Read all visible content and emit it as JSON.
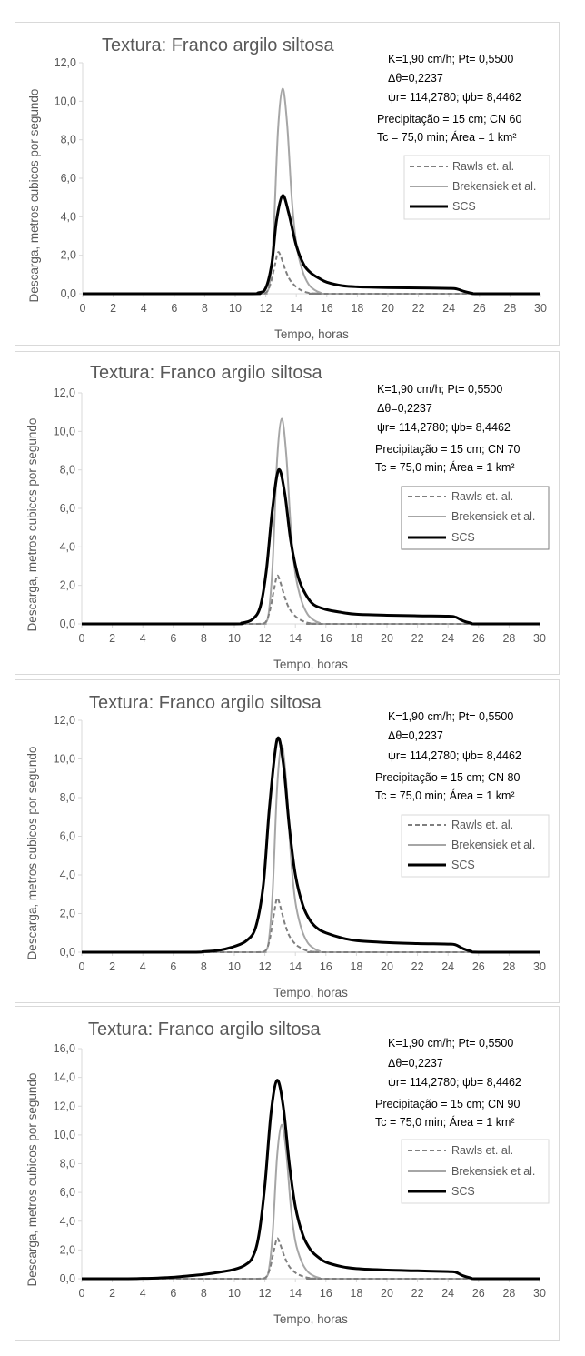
{
  "charts": [
    {
      "title": "Textura: Franco argilo siltosa",
      "params": [
        "K=1,90 cm/h; Pt= 0,5500",
        "Δθ=0,2237",
        "ψr= 114,2780;  ψb= 8,4462",
        "Precipitação = 15 cm; CN 60",
        "Tc = 75,0 min; Área = 1 km²"
      ],
      "xlabel": "Tempo, horas",
      "ylabel": "Descarga, metros cubicos por segundo",
      "x_ticks": [
        "0",
        "2",
        "4",
        "6",
        "8",
        "10",
        "12",
        "14",
        "16",
        "18",
        "20",
        "22",
        "24",
        "26",
        "28",
        "30"
      ],
      "y_ticks": [
        "0,0",
        "2,0",
        "4,0",
        "6,0",
        "8,0",
        "10,0",
        "12,0"
      ],
      "legend": [
        "Rawls et. al.",
        "Brekensiek et al.",
        "SCS"
      ]
    },
    {
      "title": "Textura: Franco argilo siltosa",
      "params": [
        "K=1,90 cm/h; Pt= 0,5500",
        "Δθ=0,2237",
        "ψr= 114,2780;  ψb= 8,4462",
        "Precipitação = 15 cm; CN 70",
        "Tc = 75,0 min; Área = 1 km²"
      ],
      "xlabel": "Tempo, horas",
      "ylabel": "Descarga, metros cubicos por segundo",
      "x_ticks": [
        "0",
        "2",
        "4",
        "6",
        "8",
        "10",
        "12",
        "14",
        "16",
        "18",
        "20",
        "22",
        "24",
        "26",
        "28",
        "30"
      ],
      "y_ticks": [
        "0,0",
        "2,0",
        "4,0",
        "6,0",
        "8,0",
        "10,0",
        "12,0"
      ],
      "legend": [
        "Rawls et. al.",
        "Brekensiek et al.",
        "SCS"
      ]
    },
    {
      "title": "Textura: Franco argilo siltosa",
      "params": [
        "K=1,90 cm/h; Pt= 0,5500",
        "Δθ=0,2237",
        "ψr= 114,2780;  ψb= 8,4462",
        "Precipitação = 15 cm; CN 80",
        "Tc = 75,0 min; Área = 1 km²"
      ],
      "xlabel": "Tempo, horas",
      "ylabel": "Descarga, metros cubicos por segundo",
      "x_ticks": [
        "0",
        "2",
        "4",
        "6",
        "8",
        "10",
        "12",
        "14",
        "16",
        "18",
        "20",
        "22",
        "24",
        "26",
        "28",
        "30"
      ],
      "y_ticks": [
        "0,0",
        "2,0",
        "4,0",
        "6,0",
        "8,0",
        "10,0",
        "12,0"
      ],
      "legend": [
        "Rawls et. al.",
        "Brekensiek et al.",
        "SCS"
      ]
    },
    {
      "title": "Textura: Franco argilo siltosa",
      "params": [
        "K=1,90 cm/h; Pt= 0,5500",
        "Δθ=0,2237",
        "ψr= 114,2780;  ψb= 8,4462",
        "Precipitação = 15 cm; CN 90",
        "Tc = 75,0 min; Área = 1 km²"
      ],
      "xlabel": "Tempo, horas",
      "ylabel": "Descarga, metros cubicos por segundo",
      "x_ticks": [
        "0",
        "2",
        "4",
        "6",
        "8",
        "10",
        "12",
        "14",
        "16",
        "18",
        "20",
        "22",
        "24",
        "26",
        "28",
        "30"
      ],
      "y_ticks": [
        "0,0",
        "2,0",
        "4,0",
        "6,0",
        "8,0",
        "10,0",
        "12,0",
        "14,0",
        "16,0"
      ],
      "legend": [
        "Rawls et. al.",
        "Brekensiek et al.",
        "SCS"
      ]
    }
  ],
  "chart_data": [
    {
      "type": "line",
      "title": "Textura: Franco argilo siltosa",
      "xlabel": "Tempo, horas",
      "ylabel": "Descarga, metros cubicos por segundo",
      "xlim": [
        0,
        30
      ],
      "ylim": [
        0,
        12
      ],
      "grid": false,
      "legend_position": "right",
      "series": [
        {
          "name": "Rawls et. al.",
          "color": "#7f7f7f",
          "dash": true,
          "x": [
            0,
            10,
            11.5,
            12,
            12.3,
            12.6,
            12.8,
            13.0,
            13.3,
            13.6,
            14.0,
            14.4,
            14.8,
            15.3,
            16,
            30
          ],
          "y": [
            0,
            0,
            0,
            0.05,
            0.5,
            1.5,
            2.15,
            1.9,
            1.2,
            0.7,
            0.35,
            0.15,
            0.05,
            0,
            0,
            0
          ]
        },
        {
          "name": "Brekensiek et al.",
          "color": "#a6a6a6",
          "dash": false,
          "x": [
            0,
            11,
            11.8,
            12.2,
            12.5,
            12.8,
            13.1,
            13.4,
            13.7,
            14.0,
            14.4,
            14.8,
            15.2,
            15.6,
            16,
            30
          ],
          "y": [
            0,
            0,
            0,
            0.3,
            3.0,
            8.5,
            10.65,
            8.8,
            5.0,
            2.6,
            1.2,
            0.5,
            0.2,
            0.05,
            0,
            0
          ]
        },
        {
          "name": "SCS",
          "color": "#000000",
          "dash": false,
          "x": [
            0,
            10.5,
            11.5,
            12.0,
            12.4,
            12.7,
            13.1,
            13.5,
            14.0,
            14.5,
            15.0,
            15.5,
            16,
            17,
            18,
            20,
            22,
            24,
            24.5,
            25.0,
            25.5,
            26,
            30
          ],
          "y": [
            0,
            0,
            0.05,
            0.3,
            1.6,
            3.8,
            5.1,
            4.2,
            2.5,
            1.5,
            1.05,
            0.8,
            0.6,
            0.42,
            0.36,
            0.32,
            0.3,
            0.28,
            0.25,
            0.12,
            0.03,
            0,
            0
          ]
        }
      ]
    },
    {
      "type": "line",
      "title": "Textura: Franco argilo siltosa",
      "xlabel": "Tempo, horas",
      "ylabel": "Descarga, metros cubicos por segundo",
      "xlim": [
        0,
        30
      ],
      "ylim": [
        0,
        12
      ],
      "grid": false,
      "legend_position": "right",
      "series": [
        {
          "name": "Rawls et. al.",
          "color": "#7f7f7f",
          "dash": true,
          "x": [
            0,
            10,
            11.5,
            12,
            12.3,
            12.6,
            12.8,
            13.0,
            13.3,
            13.6,
            14.0,
            14.4,
            14.8,
            15.3,
            16,
            30
          ],
          "y": [
            0,
            0,
            0,
            0.05,
            0.6,
            1.8,
            2.5,
            2.2,
            1.4,
            0.8,
            0.4,
            0.18,
            0.06,
            0,
            0,
            0
          ]
        },
        {
          "name": "Brekensiek et al.",
          "color": "#a6a6a6",
          "dash": false,
          "x": [
            0,
            11,
            11.8,
            12.2,
            12.5,
            12.8,
            13.1,
            13.4,
            13.7,
            14.0,
            14.4,
            14.8,
            15.2,
            15.6,
            16,
            30
          ],
          "y": [
            0,
            0,
            0,
            0.3,
            3.0,
            8.5,
            10.65,
            8.8,
            5.0,
            2.6,
            1.2,
            0.5,
            0.2,
            0.05,
            0,
            0
          ]
        },
        {
          "name": "SCS",
          "color": "#000000",
          "dash": false,
          "x": [
            0,
            9.5,
            10.5,
            11.2,
            11.7,
            12.1,
            12.5,
            12.9,
            13.3,
            13.7,
            14.2,
            14.7,
            15.2,
            16,
            17,
            18,
            20,
            22,
            24,
            24.5,
            25.0,
            25.5,
            26,
            30
          ],
          "y": [
            0,
            0,
            0.05,
            0.25,
            0.9,
            2.8,
            6.0,
            8.0,
            6.8,
            4.3,
            2.4,
            1.5,
            1.0,
            0.75,
            0.6,
            0.5,
            0.45,
            0.42,
            0.4,
            0.35,
            0.15,
            0.04,
            0,
            0
          ]
        }
      ]
    },
    {
      "type": "line",
      "title": "Textura: Franco argilo siltosa",
      "xlabel": "Tempo, horas",
      "ylabel": "Descarga, metros cubicos por segundo",
      "xlim": [
        0,
        30
      ],
      "ylim": [
        0,
        12
      ],
      "grid": false,
      "legend_position": "right",
      "series": [
        {
          "name": "Rawls et. al.",
          "color": "#7f7f7f",
          "dash": true,
          "x": [
            0,
            10,
            11.5,
            12,
            12.3,
            12.6,
            12.8,
            13.0,
            13.3,
            13.6,
            14.0,
            14.4,
            14.8,
            15.3,
            16,
            30
          ],
          "y": [
            0,
            0,
            0,
            0.05,
            0.6,
            2.0,
            2.8,
            2.4,
            1.5,
            0.85,
            0.42,
            0.2,
            0.07,
            0,
            0,
            0
          ]
        },
        {
          "name": "Brekensiek et al.",
          "color": "#a6a6a6",
          "dash": false,
          "x": [
            0,
            11,
            11.8,
            12.2,
            12.5,
            12.8,
            13.1,
            13.4,
            13.7,
            14.0,
            14.4,
            14.8,
            15.2,
            15.6,
            16,
            30
          ],
          "y": [
            0,
            0,
            0,
            0.3,
            3.0,
            8.5,
            10.7,
            8.8,
            5.0,
            2.6,
            1.2,
            0.5,
            0.2,
            0.05,
            0,
            0
          ]
        },
        {
          "name": "SCS",
          "color": "#000000",
          "dash": false,
          "x": [
            0,
            7,
            8,
            9,
            10,
            10.8,
            11.4,
            11.9,
            12.3,
            12.8,
            13.2,
            13.6,
            14.0,
            14.5,
            15.0,
            15.5,
            16,
            17,
            18,
            20,
            22,
            24,
            24.5,
            25.0,
            25.5,
            26,
            30
          ],
          "y": [
            0,
            0,
            0.03,
            0.1,
            0.3,
            0.6,
            1.3,
            3.5,
            7.5,
            11.0,
            9.8,
            6.5,
            4.0,
            2.4,
            1.6,
            1.2,
            1.0,
            0.75,
            0.6,
            0.5,
            0.45,
            0.42,
            0.38,
            0.18,
            0.05,
            0,
            0
          ]
        }
      ]
    },
    {
      "type": "line",
      "title": "Textura: Franco argilo siltosa",
      "xlabel": "Tempo, horas",
      "ylabel": "Descarga, metros cubicos por segundo",
      "xlim": [
        0,
        30
      ],
      "ylim": [
        0,
        16
      ],
      "grid": false,
      "legend_position": "right",
      "series": [
        {
          "name": "Rawls et. al.",
          "color": "#7f7f7f",
          "dash": true,
          "x": [
            0,
            10,
            11.5,
            12,
            12.3,
            12.6,
            12.8,
            13.0,
            13.3,
            13.6,
            14.0,
            14.4,
            14.8,
            15.3,
            16,
            30
          ],
          "y": [
            0,
            0,
            0,
            0.05,
            0.6,
            2.0,
            2.8,
            2.4,
            1.5,
            0.85,
            0.42,
            0.2,
            0.07,
            0,
            0,
            0
          ]
        },
        {
          "name": "Brekensiek et al.",
          "color": "#a6a6a6",
          "dash": false,
          "x": [
            0,
            11,
            11.8,
            12.2,
            12.5,
            12.8,
            13.1,
            13.4,
            13.7,
            14.0,
            14.4,
            14.8,
            15.2,
            15.6,
            16,
            30
          ],
          "y": [
            0,
            0,
            0,
            0.3,
            3.0,
            8.5,
            10.7,
            8.8,
            5.0,
            2.6,
            1.2,
            0.5,
            0.2,
            0.05,
            0,
            0
          ]
        },
        {
          "name": "SCS",
          "color": "#000000",
          "dash": false,
          "x": [
            0,
            3,
            4,
            5,
            6,
            7,
            8,
            9,
            10,
            10.7,
            11.2,
            11.6,
            12.0,
            12.4,
            12.8,
            13.2,
            13.6,
            14.0,
            14.5,
            15.0,
            15.5,
            16,
            17,
            18,
            20,
            22,
            24,
            24.5,
            25.0,
            25.5,
            26,
            30
          ],
          "y": [
            0,
            0,
            0.02,
            0.05,
            0.1,
            0.2,
            0.3,
            0.45,
            0.65,
            0.95,
            1.5,
            3.0,
            6.5,
            11.5,
            13.8,
            12.0,
            8.0,
            5.0,
            3.0,
            2.0,
            1.5,
            1.15,
            0.85,
            0.7,
            0.6,
            0.55,
            0.5,
            0.45,
            0.2,
            0.05,
            0,
            0
          ]
        }
      ]
    }
  ]
}
